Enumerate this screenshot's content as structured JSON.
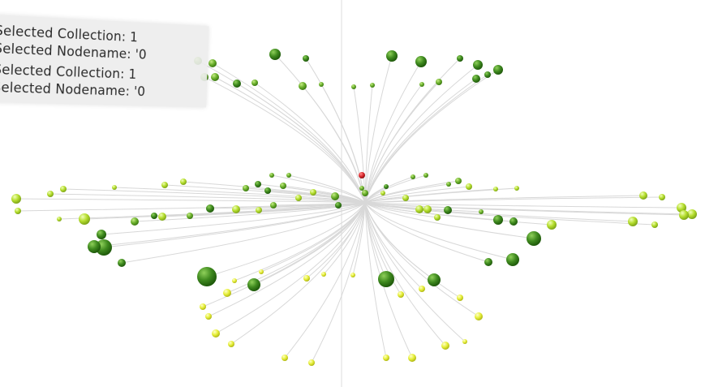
{
  "viewer": {
    "info_lines": [
      "Selected Collection: 1",
      "Selected Nodename: '0",
      "Selected Collection: 1",
      "Selected Nodename: '0"
    ]
  },
  "graph": {
    "selected_node_color": "#d9262b",
    "edge_color": "#d5d5d5",
    "axis_color": "#e2e2e2",
    "node_colors": {
      "dark_green": "#3f8a1f",
      "green": "#6bb02c",
      "lime": "#b4dd2c",
      "yellow": "#e6ef3a"
    }
  }
}
